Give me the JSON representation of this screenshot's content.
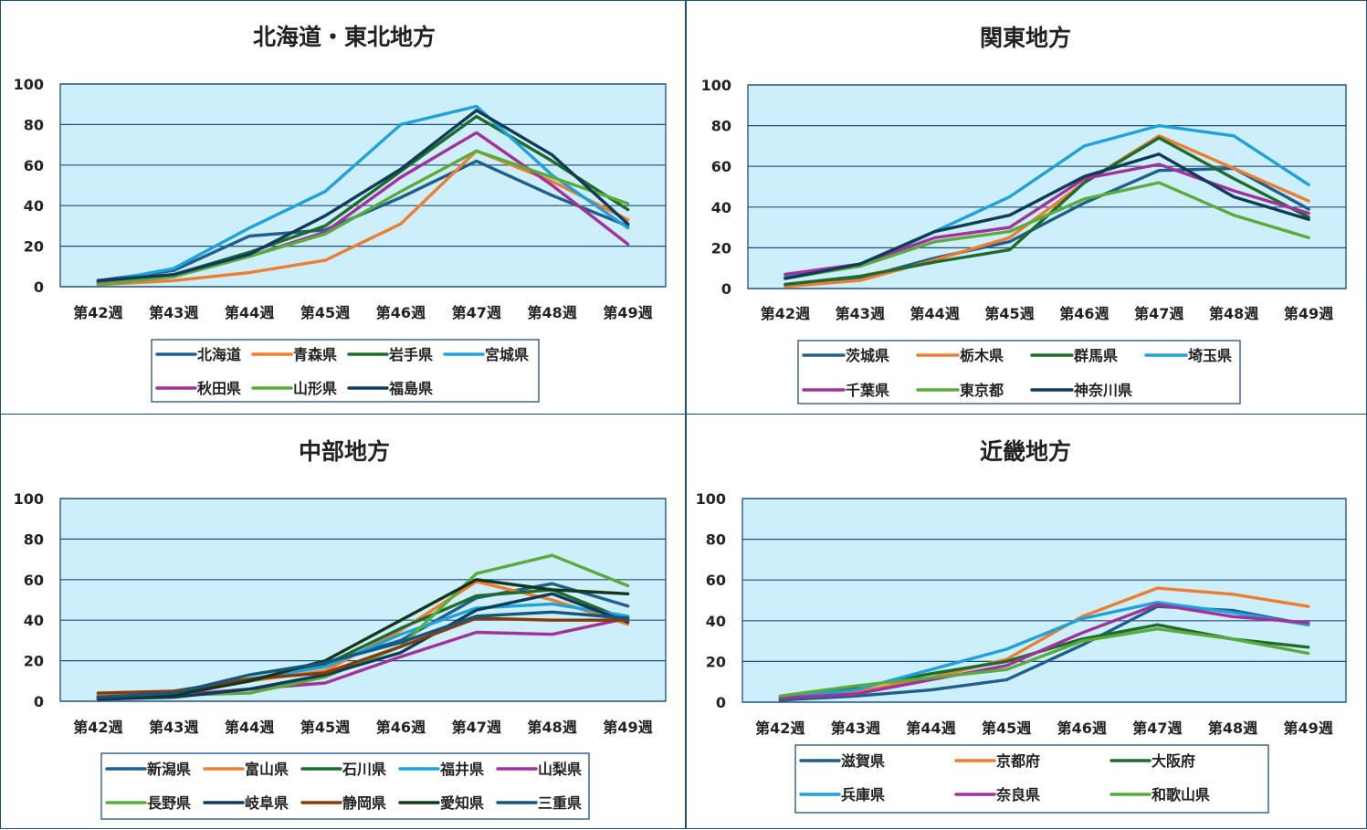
{
  "chart_data": [
    {
      "type": "line",
      "title": "北海道・東北地方",
      "categories": [
        "第42週",
        "第43週",
        "第44週",
        "第45週",
        "第46週",
        "第47週",
        "第48週",
        "第49週"
      ],
      "ylim": [
        0,
        100
      ],
      "yticks": [
        0,
        20,
        40,
        60,
        80,
        100
      ],
      "grid": true,
      "legend": "bottom",
      "series": [
        {
          "name": "北海道",
          "color": "#1f5f8b",
          "values": [
            3,
            8,
            25,
            28,
            44,
            62,
            45,
            30
          ]
        },
        {
          "name": "青森県",
          "color": "#ed7d31",
          "values": [
            1,
            3,
            7,
            13,
            31,
            67,
            52,
            33
          ]
        },
        {
          "name": "岩手県",
          "color": "#1e6b2c",
          "values": [
            2,
            6,
            17,
            30,
            57,
            84,
            62,
            38
          ]
        },
        {
          "name": "宮城県",
          "color": "#1fa2dc",
          "values": [
            2,
            9,
            29,
            47,
            80,
            89,
            55,
            29
          ]
        },
        {
          "name": "秋田県",
          "color": "#a2329a",
          "values": [
            2,
            5,
            15,
            27,
            54,
            76,
            50,
            21
          ]
        },
        {
          "name": "山形県",
          "color": "#5aab3c",
          "values": [
            1,
            5,
            15,
            26,
            47,
            67,
            54,
            41
          ]
        },
        {
          "name": "福島県",
          "color": "#0f3b59",
          "values": [
            3,
            6,
            16,
            35,
            58,
            87,
            65,
            31
          ]
        }
      ]
    },
    {
      "type": "line",
      "title": "関東地方",
      "categories": [
        "第42週",
        "第43週",
        "第44週",
        "第45週",
        "第46週",
        "第47週",
        "第48週",
        "第49週"
      ],
      "ylim": [
        0,
        100
      ],
      "yticks": [
        0,
        20,
        40,
        60,
        80,
        100
      ],
      "grid": true,
      "legend": "bottom",
      "series": [
        {
          "name": "茨城県",
          "color": "#1f5f8b",
          "values": [
            2,
            5,
            15,
            23,
            42,
            58,
            59,
            39
          ]
        },
        {
          "name": "栃木県",
          "color": "#ed7d31",
          "values": [
            1,
            4,
            14,
            25,
            52,
            75,
            59,
            43
          ]
        },
        {
          "name": "群馬県",
          "color": "#1e6b2c",
          "values": [
            2,
            6,
            13,
            19,
            52,
            74,
            54,
            35
          ]
        },
        {
          "name": "埼玉県",
          "color": "#1fa2dc",
          "values": [
            6,
            11,
            28,
            45,
            70,
            80,
            75,
            51
          ]
        },
        {
          "name": "千葉県",
          "color": "#a2329a",
          "values": [
            7,
            12,
            25,
            30,
            54,
            61,
            48,
            37
          ]
        },
        {
          "name": "東京都",
          "color": "#5aab3c",
          "values": [
            5,
            11,
            23,
            28,
            44,
            52,
            36,
            25
          ]
        },
        {
          "name": "神奈川県",
          "color": "#0f3b59",
          "values": [
            5,
            12,
            28,
            36,
            55,
            66,
            45,
            34
          ]
        }
      ]
    },
    {
      "type": "line",
      "title": "中部地方",
      "categories": [
        "第42週",
        "第43週",
        "第44週",
        "第45週",
        "第46週",
        "第47週",
        "第48週",
        "第49週"
      ],
      "ylim": [
        0,
        100
      ],
      "yticks": [
        0,
        20,
        40,
        60,
        80,
        100
      ],
      "grid": true,
      "legend": "bottom",
      "series": [
        {
          "name": "新潟県",
          "color": "#1f5f8b",
          "values": [
            2,
            3,
            10,
            19,
            30,
            51,
            58,
            47
          ]
        },
        {
          "name": "富山県",
          "color": "#ed7d31",
          "values": [
            3,
            4,
            10,
            15,
            35,
            59,
            50,
            38
          ]
        },
        {
          "name": "石川県",
          "color": "#1e6b2c",
          "values": [
            2,
            3,
            10,
            18,
            36,
            52,
            55,
            40
          ]
        },
        {
          "name": "福井県",
          "color": "#1fa2dc",
          "values": [
            2,
            4,
            11,
            17,
            33,
            46,
            48,
            42
          ]
        },
        {
          "name": "山梨県",
          "color": "#a2329a",
          "values": [
            2,
            3,
            6,
            9,
            22,
            34,
            33,
            41
          ]
        },
        {
          "name": "長野県",
          "color": "#5aab3c",
          "values": [
            2,
            3,
            4,
            12,
            27,
            63,
            72,
            57
          ]
        },
        {
          "name": "岐阜県",
          "color": "#0f3b59",
          "values": [
            1,
            2,
            6,
            13,
            24,
            45,
            53,
            39
          ]
        },
        {
          "name": "静岡県",
          "color": "#843c0c",
          "values": [
            4,
            5,
            11,
            14,
            27,
            41,
            40,
            40
          ]
        },
        {
          "name": "愛知県",
          "color": "#14361c",
          "values": [
            2,
            3,
            10,
            20,
            40,
            60,
            55,
            53
          ]
        },
        {
          "name": "三重県",
          "color": "#13577f",
          "values": [
            2,
            4,
            13,
            19,
            29,
            42,
            44,
            41
          ]
        }
      ]
    },
    {
      "type": "line",
      "title": "近畿地方",
      "categories": [
        "第42週",
        "第43週",
        "第44週",
        "第45週",
        "第46週",
        "第47週",
        "第48週",
        "第49週"
      ],
      "ylim": [
        0,
        100
      ],
      "yticks": [
        0,
        20,
        40,
        60,
        80,
        100
      ],
      "grid": true,
      "legend": "bottom",
      "series": [
        {
          "name": "滋賀県",
          "color": "#1f5f8b",
          "values": [
            1,
            3,
            6,
            11,
            28,
            47,
            45,
            38
          ]
        },
        {
          "name": "京都府",
          "color": "#ed7d31",
          "values": [
            2,
            5,
            12,
            21,
            42,
            56,
            53,
            47
          ]
        },
        {
          "name": "大阪府",
          "color": "#1e6b2c",
          "values": [
            2,
            7,
            14,
            20,
            31,
            38,
            31,
            27
          ]
        },
        {
          "name": "兵庫県",
          "color": "#1fa2dc",
          "values": [
            2,
            6,
            16,
            26,
            41,
            49,
            44,
            38
          ]
        },
        {
          "name": "奈良県",
          "color": "#a2329a",
          "values": [
            2,
            4,
            11,
            18,
            34,
            48,
            42,
            39
          ]
        },
        {
          "name": "和歌山県",
          "color": "#5aab3c",
          "values": [
            3,
            8,
            12,
            16,
            30,
            36,
            31,
            24
          ]
        }
      ]
    }
  ]
}
